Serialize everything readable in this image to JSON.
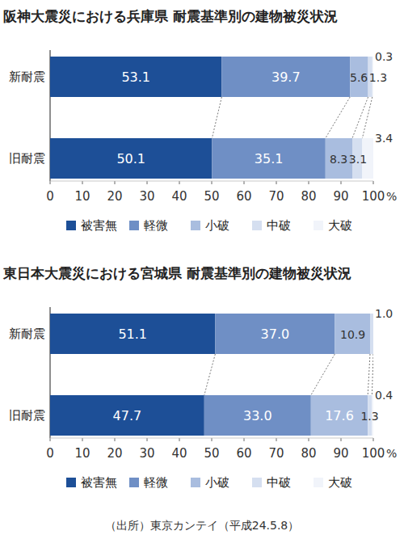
{
  "chart_data": [
    {
      "type": "bar",
      "orientation": "horizontal",
      "stacked": true,
      "data_labels": true,
      "title": "阪神大震災における兵庫県 耐震基準別の建物被災状況",
      "categories": [
        "新耐震",
        "旧耐震"
      ],
      "series": [
        {
          "name": "被害無",
          "color": "#1d4f97",
          "values": [
            53.1,
            50.1
          ]
        },
        {
          "name": "軽微",
          "color": "#6f8fc5",
          "values": [
            39.7,
            35.1
          ]
        },
        {
          "name": "小破",
          "color": "#a9bddf",
          "values": [
            5.6,
            8.3
          ]
        },
        {
          "name": "中破",
          "color": "#d5dff0",
          "values": [
            1.3,
            3.1
          ]
        },
        {
          "name": "大破",
          "color": "#f1f4fa",
          "values": [
            0.3,
            3.4
          ]
        }
      ],
      "xlim": [
        0,
        100
      ],
      "xticks": [
        0,
        10,
        20,
        30,
        40,
        50,
        60,
        70,
        80,
        90,
        100
      ],
      "xlabel": "%"
    },
    {
      "type": "bar",
      "orientation": "horizontal",
      "stacked": true,
      "data_labels": true,
      "title": "東日本大震災における宮城県 耐震基準別の建物被災状況",
      "categories": [
        "新耐震",
        "旧耐震"
      ],
      "series": [
        {
          "name": "被害無",
          "color": "#1d4f97",
          "values": [
            51.1,
            47.7
          ]
        },
        {
          "name": "軽微",
          "color": "#6f8fc5",
          "values": [
            37.0,
            33.0
          ]
        },
        {
          "name": "小破",
          "color": "#a9bddf",
          "values": [
            10.9,
            17.6
          ]
        },
        {
          "name": "中破",
          "color": "#d5dff0",
          "values": [
            1.0,
            1.3
          ]
        },
        {
          "name": "大破",
          "color": "#f1f4fa",
          "values": [
            null,
            0.4
          ]
        }
      ],
      "xlim": [
        0,
        100
      ],
      "xticks": [
        0,
        10,
        20,
        30,
        40,
        50,
        60,
        70,
        80,
        90,
        100
      ],
      "xlabel": "%",
      "annotations": [
        "（出所）東京カンテイ（平成24.5.8）"
      ]
    }
  ]
}
